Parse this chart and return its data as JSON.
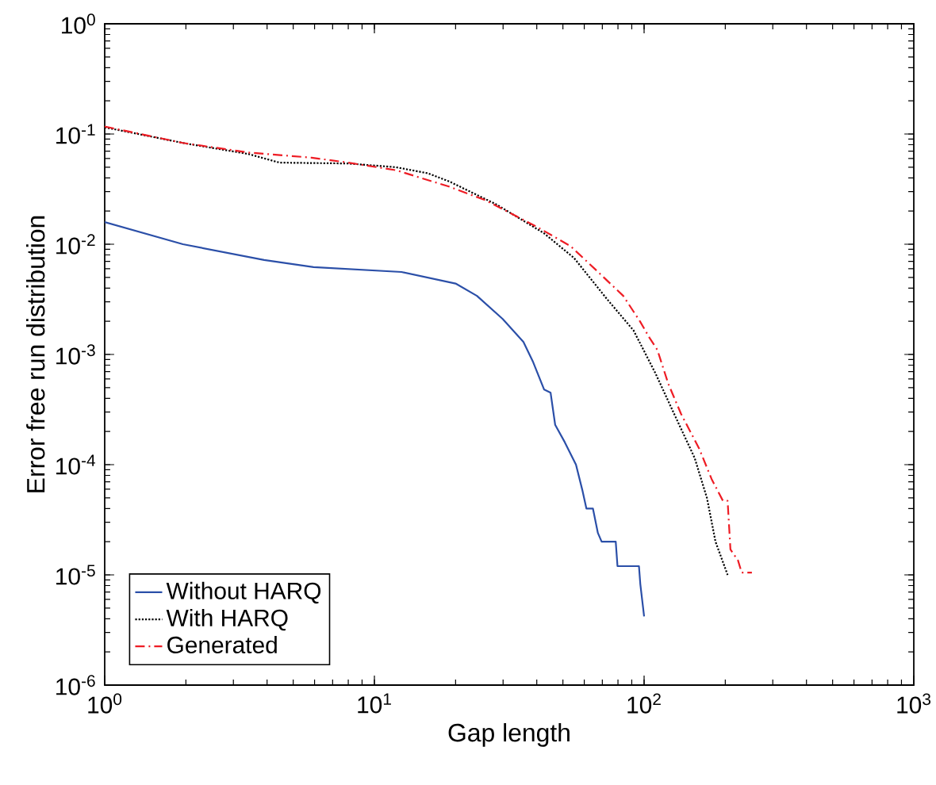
{
  "chart_data": {
    "type": "line",
    "xlabel": "Gap length",
    "ylabel": "Error free run distribution",
    "log": "xy",
    "legend": "bottom left",
    "marker": "none",
    "xlim": [
      1,
      1000
    ],
    "ylim": [
      1e-06,
      1
    ],
    "xticks": [
      {
        "value": 1,
        "label": "10$^{0}$"
      },
      {
        "value": 10,
        "label": "10$^{1}$"
      },
      {
        "value": 100,
        "label": "10$^{2}$"
      },
      {
        "value": 1000,
        "label": "10$^{3}$"
      }
    ],
    "yticks": [
      {
        "value": 1e-06,
        "label": "10$^{-6}$"
      },
      {
        "value": 1e-05,
        "label": "10$^{-5}$"
      },
      {
        "value": 0.0001,
        "label": "10$^{-4}$"
      },
      {
        "value": 0.001,
        "label": "10$^{-3}$"
      },
      {
        "value": 0.01,
        "label": "10$^{-2}$"
      },
      {
        "value": 0.1,
        "label": "10$^{-1}$"
      },
      {
        "value": 1,
        "label": "10$^{0}$"
      }
    ],
    "series": [
      {
        "name": "Without HARQ",
        "color": "#2b4fa8",
        "line_style": "solid",
        "x": [
          1,
          1.95,
          3.9,
          5.95,
          12.6,
          20,
          24,
          29.9,
          35.7,
          38.8,
          42.6,
          45,
          46.8,
          50.8,
          55.9,
          59,
          61.1,
          64.6,
          67.4,
          69.6,
          78.5,
          79.7,
          95.7,
          96.8,
          100
        ],
        "values": [
          0.0159,
          0.01,
          0.0072,
          0.0062,
          0.0056,
          0.0044,
          0.0034,
          0.0021,
          0.0013,
          0.00085,
          0.00048,
          0.00045,
          0.00023,
          0.00016,
          0.0001,
          5.9e-05,
          4e-05,
          4e-05,
          2.4e-05,
          2e-05,
          2e-05,
          1.2e-05,
          1.2e-05,
          8.3e-06,
          4.2e-06
        ]
      },
      {
        "name": "With HARQ",
        "color": "#000000",
        "line_style": "dotted",
        "x": [
          1,
          2,
          3.4,
          4.45,
          8,
          12,
          15.8,
          19,
          28.3,
          42.5,
          55,
          72.7,
          91.4,
          110,
          130,
          154,
          171,
          184,
          204
        ],
        "values": [
          0.115,
          0.082,
          0.066,
          0.055,
          0.054,
          0.05,
          0.044,
          0.037,
          0.023,
          0.0126,
          0.0075,
          0.0032,
          0.00165,
          0.00068,
          0.00028,
          0.000115,
          5e-05,
          2e-05,
          1e-05
        ]
      },
      {
        "name": "Generated",
        "color": "#ee1c24",
        "line_style": "dashdot",
        "x": [
          1,
          1.95,
          3.4,
          5.85,
          8,
          12,
          18.8,
          25.9,
          40.6,
          53.4,
          66.5,
          83.7,
          96.5,
          105,
          112,
          123,
          137,
          160,
          178,
          196,
          204,
          209,
          223,
          230,
          251
        ],
        "values": [
          0.117,
          0.083,
          0.068,
          0.061,
          0.055,
          0.047,
          0.0335,
          0.025,
          0.0141,
          0.0096,
          0.0058,
          0.0034,
          0.002,
          0.0014,
          0.0011,
          0.00054,
          0.00029,
          0.00014,
          7.4e-05,
          4.7e-05,
          4.7e-05,
          1.7e-05,
          1.35e-05,
          1.05e-05,
          1.05e-05
        ]
      }
    ]
  }
}
